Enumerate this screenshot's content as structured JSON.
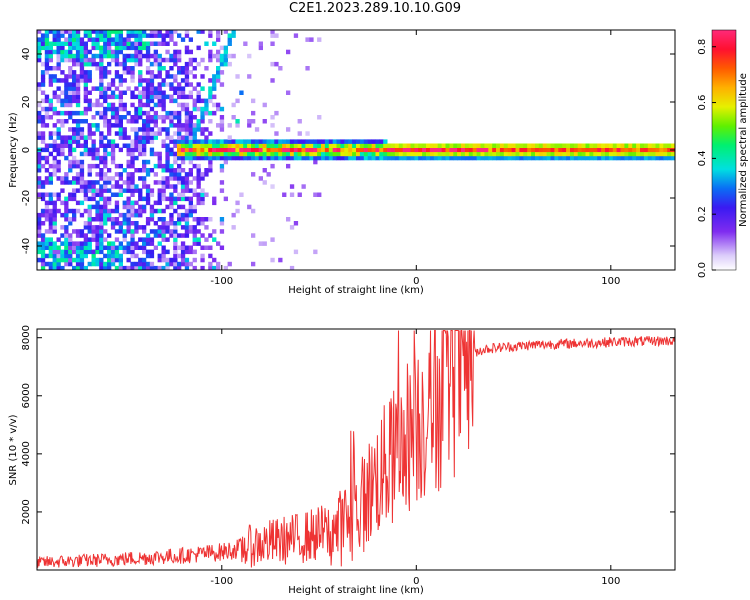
{
  "title": "C2E1.2023.289.10.10.G09",
  "chart_data": [
    {
      "type": "heatmap",
      "xlabel": "Height of straight line (km)",
      "ylabel": "Frequency (Hz)",
      "xlim": [
        -195,
        133
      ],
      "ylim": [
        -50,
        50
      ],
      "x_ticks": [
        -100,
        0,
        100
      ],
      "y_ticks": [
        -40,
        -20,
        0,
        20,
        40
      ],
      "colorbar": {
        "label": "Normalized spectral amplitude",
        "range": [
          0.0,
          0.86
        ],
        "ticks": [
          "0.0",
          "0.2",
          "0.4",
          "0.6",
          "0.8"
        ],
        "colormap": "white-purple-blue-cyan-green-yellow-orange-red-pink"
      },
      "features": [
        {
          "name": "dominant band",
          "x_range": [
            -125,
            133
          ],
          "freq_center": 0,
          "level": "high"
        },
        {
          "name": "diagonal streak",
          "x_from": -118,
          "x_to": -95,
          "freq_from": 0,
          "freq_to": 50
        },
        {
          "name": "scattered noise",
          "x_range": [
            -195,
            -90
          ],
          "freq_range": [
            -50,
            50
          ],
          "level": "low"
        }
      ]
    },
    {
      "type": "line",
      "xlabel": "Height of straight line (km)",
      "ylabel": "SNR (10 * v/v)",
      "xlim": [
        -195,
        133
      ],
      "ylim": [
        0,
        8300
      ],
      "x_ticks": [
        -100,
        0,
        100
      ],
      "y_ticks": [
        2000,
        4000,
        6000,
        8000
      ],
      "series_color": "#ee3333",
      "x": [
        -195,
        -180,
        -160,
        -140,
        -120,
        -100,
        -90,
        -80,
        -70,
        -60,
        -50,
        -40,
        -35,
        -30,
        -25,
        -20,
        -15,
        -10,
        -5,
        0,
        5,
        10,
        15,
        20,
        25,
        30,
        35,
        40,
        50,
        60,
        70,
        80,
        90,
        100,
        110,
        120,
        133
      ],
      "values": [
        250,
        300,
        350,
        420,
        500,
        620,
        750,
        900,
        1000,
        1100,
        1250,
        1400,
        1700,
        2000,
        2600,
        3200,
        3600,
        4000,
        4600,
        5000,
        5400,
        5800,
        6300,
        6900,
        7300,
        7500,
        7600,
        7650,
        7700,
        7750,
        7780,
        7800,
        7820,
        7850,
        7870,
        7880,
        7900
      ]
    }
  ],
  "axes": {
    "top_xlabel": "Height of straight line (km)",
    "top_ylabel": "Frequency (Hz)",
    "bottom_xlabel": "Height of straight line (km)",
    "bottom_ylabel": "SNR (10 * v/v)",
    "colorbar_label": "Normalized spectral amplitude"
  }
}
